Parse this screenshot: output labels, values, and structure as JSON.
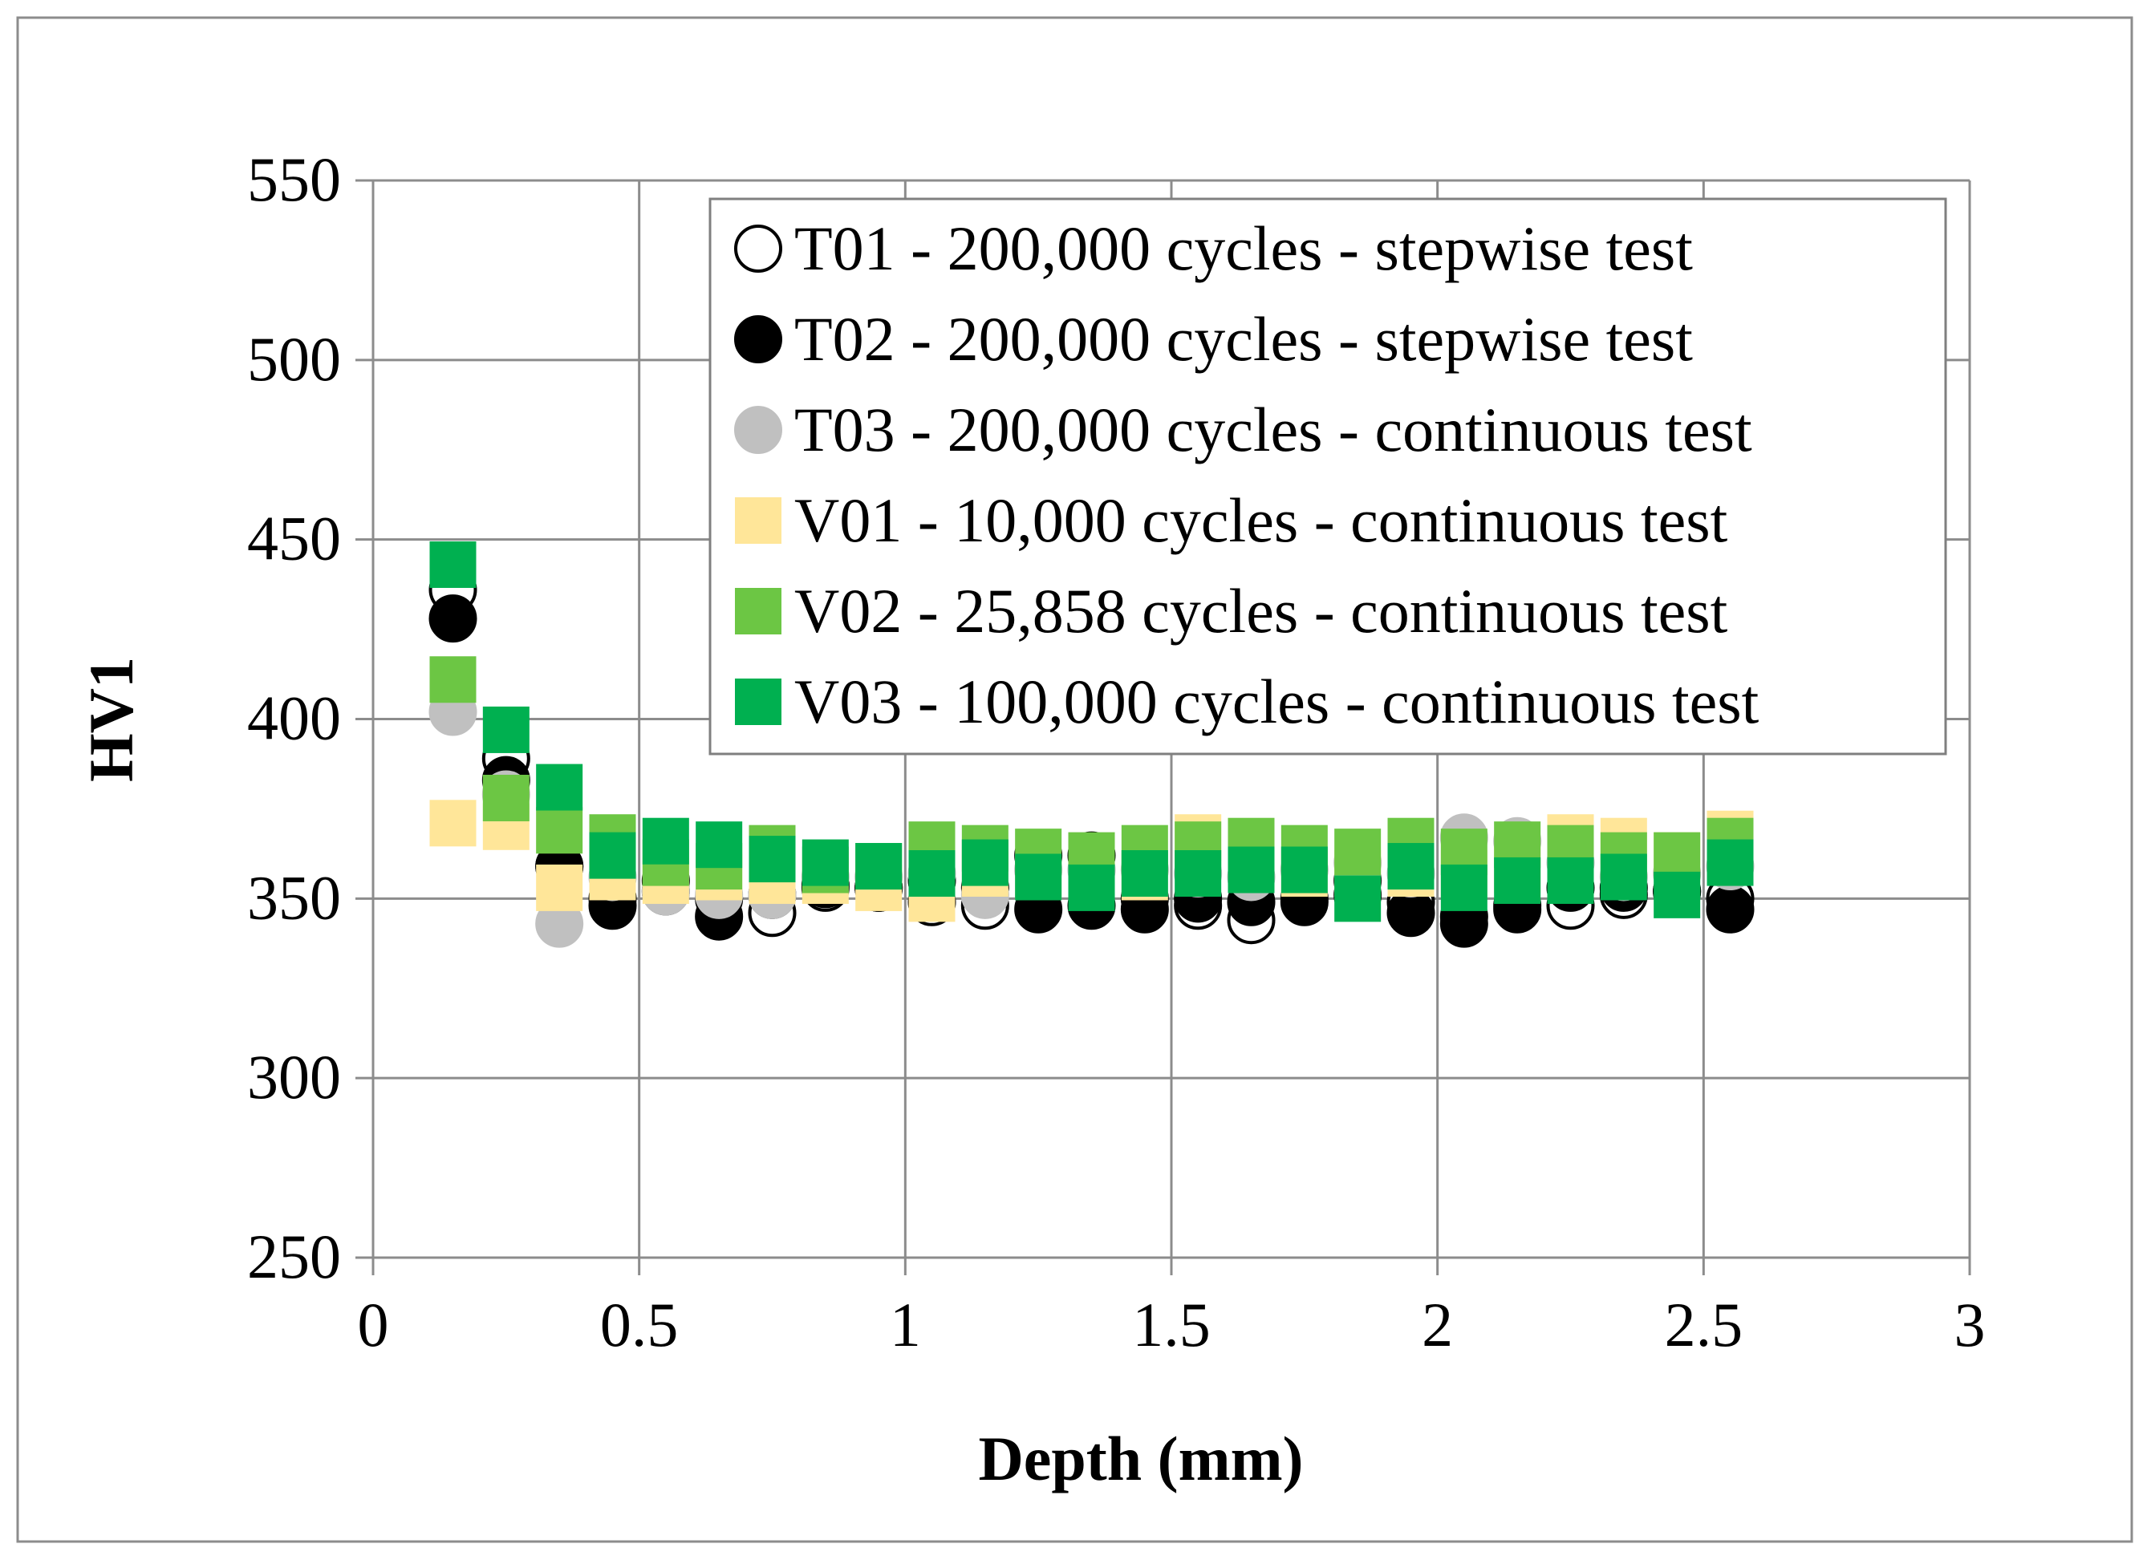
{
  "chart_data": {
    "type": "scatter",
    "title": "",
    "xlabel": "Depth (mm)",
    "ylabel": "HV1",
    "xlim": [
      0,
      3
    ],
    "ylim": [
      250,
      550
    ],
    "xticks": [
      0,
      0.5,
      1,
      1.5,
      2,
      2.5,
      3
    ],
    "yticks": [
      250,
      300,
      350,
      400,
      450,
      500,
      550
    ],
    "xtick_labels": [
      "0",
      "0.5",
      "1",
      "1.5",
      "2",
      "2.5",
      "3"
    ],
    "ytick_labels": [
      "250",
      "300",
      "350",
      "400",
      "450",
      "500",
      "550"
    ],
    "grid": true,
    "legend_position": "top-right",
    "series": [
      {
        "name": "T01 - 200,000 cycles - stepwise test",
        "marker": "circle",
        "fill": "#ffffff",
        "stroke": "#000000",
        "x": [
          0.15,
          0.25,
          0.35,
          0.45,
          0.55,
          0.65,
          0.75,
          0.85,
          0.95,
          1.05,
          1.15,
          1.25,
          1.35,
          1.45,
          1.55,
          1.65,
          1.75,
          1.85,
          1.95,
          2.05,
          2.15,
          2.25,
          2.35,
          2.45,
          2.55
        ],
        "y": [
          436,
          389,
          359,
          350,
          352,
          350,
          346,
          353,
          353,
          349,
          348,
          362,
          362,
          350,
          348,
          344,
          350,
          355,
          349,
          345,
          348,
          348,
          351,
          352,
          350
        ]
      },
      {
        "name": "T02 - 200,000 cycles - stepwise test",
        "marker": "circle",
        "fill": "#000000",
        "stroke": "#000000",
        "x": [
          0.15,
          0.25,
          0.35,
          0.45,
          0.55,
          0.65,
          0.75,
          0.85,
          0.95,
          1.05,
          1.15,
          1.25,
          1.35,
          1.45,
          1.55,
          1.65,
          1.75,
          1.85,
          1.95,
          2.05,
          2.15,
          2.25,
          2.35,
          2.45,
          2.55
        ],
        "y": [
          428,
          383,
          359,
          348,
          355,
          345,
          351,
          354,
          353,
          355,
          353,
          347,
          348,
          347,
          350,
          349,
          349,
          351,
          346,
          343,
          347,
          353,
          353,
          352,
          347
        ]
      },
      {
        "name": "T03 - 200,000 cycles - continuous test",
        "marker": "circle",
        "fill": "#c0c0c0",
        "stroke": "#c0c0c0",
        "x": [
          0.15,
          0.25,
          0.35,
          0.45,
          0.55,
          0.65,
          0.75,
          0.85,
          0.95,
          1.05,
          1.15,
          1.25,
          1.35,
          1.45,
          1.55,
          1.65,
          1.75,
          1.85,
          1.95,
          2.05,
          2.15,
          2.25,
          2.35,
          2.45,
          2.55
        ],
        "y": [
          402,
          379,
          343,
          356,
          352,
          351,
          351,
          356,
          356,
          357,
          351,
          358,
          358,
          358,
          357,
          356,
          358,
          360,
          357,
          367,
          366,
          360,
          356,
          357,
          359
        ]
      },
      {
        "name": "V01 - 10,000 cycles - continuous test",
        "marker": "square",
        "fill": "#ffe699",
        "stroke": "#ffe699",
        "x": [
          0.15,
          0.25,
          0.35,
          0.45,
          0.55,
          0.65,
          0.75,
          0.85,
          0.95,
          1.05,
          1.15,
          1.25,
          1.35,
          1.45,
          1.55,
          1.65,
          1.75,
          1.85,
          1.95,
          2.05,
          2.15,
          2.25,
          2.35,
          2.45,
          2.55
        ],
        "y": [
          371,
          370,
          353,
          356,
          355,
          356,
          355,
          355,
          353,
          350,
          357,
          356,
          357,
          356,
          367,
          358,
          357,
          357,
          357,
          357,
          358,
          367,
          366,
          362,
          368
        ]
      },
      {
        "name": "V02 - 25,858 cycles - continuous test",
        "marker": "square",
        "fill": "#6cc644",
        "stroke": "#6cc644",
        "x": [
          0.15,
          0.25,
          0.35,
          0.45,
          0.55,
          0.65,
          0.75,
          0.85,
          0.95,
          1.05,
          1.15,
          1.25,
          1.35,
          1.45,
          1.55,
          1.65,
          1.75,
          1.85,
          1.95,
          2.05,
          2.15,
          2.25,
          2.35,
          2.45,
          2.55
        ],
        "y": [
          411,
          378,
          369,
          367,
          360,
          359,
          364,
          358,
          359,
          365,
          364,
          363,
          362,
          364,
          365,
          366,
          364,
          363,
          366,
          363,
          365,
          364,
          362,
          362,
          366
        ]
      },
      {
        "name": "V03 - 100,000 cycles - continuous test",
        "marker": "square",
        "fill": "#00b050",
        "stroke": "#00b050",
        "x": [
          0.15,
          0.25,
          0.35,
          0.45,
          0.55,
          0.65,
          0.75,
          0.85,
          0.95,
          1.05,
          1.15,
          1.25,
          1.35,
          1.45,
          1.55,
          1.65,
          1.75,
          1.85,
          1.95,
          2.05,
          2.15,
          2.25,
          2.35,
          2.45,
          2.55
        ],
        "y": [
          443,
          397,
          381,
          362,
          366,
          365,
          361,
          360,
          359,
          357,
          360,
          356,
          353,
          357,
          357,
          358,
          358,
          350,
          359,
          353,
          355,
          355,
          356,
          351,
          360
        ]
      }
    ]
  }
}
